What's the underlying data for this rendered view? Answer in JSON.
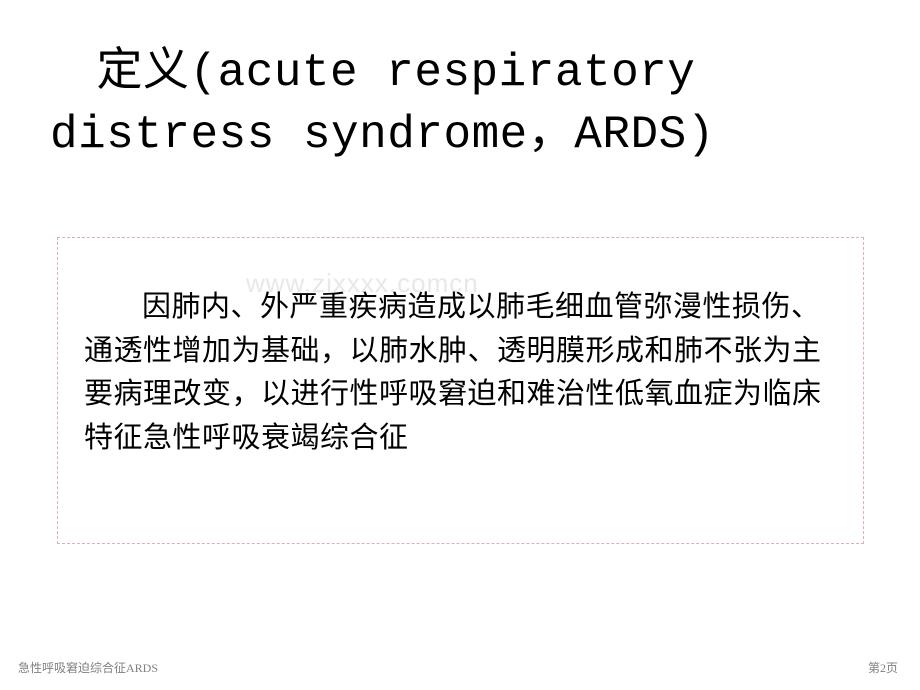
{
  "slide": {
    "title": "　定义(acute respiratory distress syndrome，ARDS)",
    "body": "因肺内、外严重疾病造成以肺毛细血管弥漫性损伤、通透性增加为基础，以肺水肿、透明膜形成和肺不张为主要病理改变，以进行性呼吸窘迫和难治性低氧血症为临床特征急性呼吸衰竭综合征",
    "watermark": "www.zixxxx.comcn"
  },
  "footer": {
    "left": "急性呼吸窘迫综合征ARDS",
    "right": "第2页"
  },
  "styles": {
    "title_fontsize": 46,
    "title_color": "#000000",
    "body_fontsize": 29,
    "body_color": "#000000",
    "body_line_height": 1.5,
    "box_border_color": "#d9b3b3",
    "box_border_style": "dashed",
    "background_color": "#ffffff",
    "watermark_color": "#e8e8e8",
    "footer_fontsize": 12,
    "footer_color": "#808080"
  }
}
